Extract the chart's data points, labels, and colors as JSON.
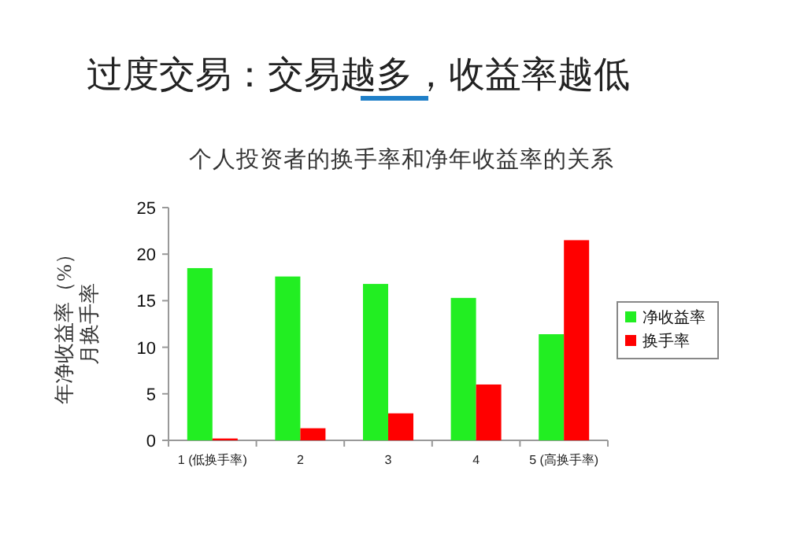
{
  "chart_data": {
    "type": "bar",
    "title": "过度交易：交易越多，收益率越低",
    "subtitle": "个人投资者的换手率和净年收益率的关系",
    "ylabel": "年净收益率（%）月换手率",
    "categories": [
      "1 (低换手率)",
      "2",
      "3",
      "4",
      "5 (高换手率)"
    ],
    "series": [
      {
        "name": "净收益率",
        "color": "#22ee22",
        "values": [
          18.5,
          17.6,
          16.8,
          15.3,
          11.4
        ]
      },
      {
        "name": "换手率",
        "color": "#ff0000",
        "values": [
          0.2,
          1.3,
          2.9,
          6.0,
          21.5
        ]
      }
    ],
    "ylim": [
      0,
      25
    ],
    "yticks": [
      0,
      5,
      10,
      15,
      20,
      25
    ],
    "grid": false,
    "legend": "right"
  }
}
